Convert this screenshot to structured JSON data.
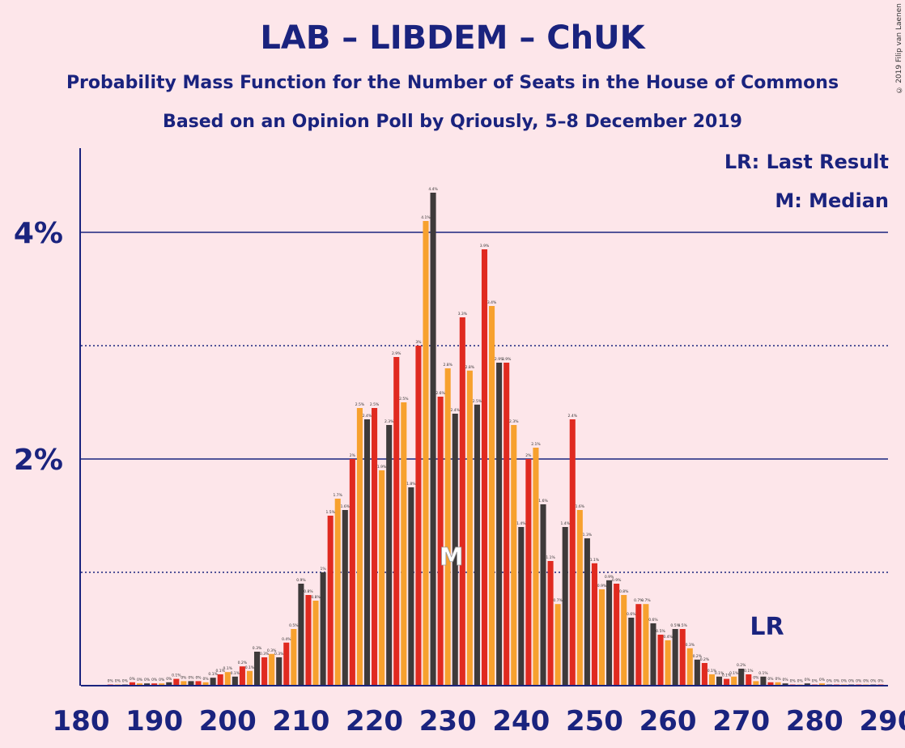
{
  "chart_data": {
    "type": "bar",
    "title": "LAB – LIBDEM – ChUK",
    "subtitle": "Probability Mass Function for the Number of Seats in the House of Commons",
    "subtitle2": "Based on an Opinion Poll by Qriously, 5–8 December 2019",
    "copyright": "© 2019 Filip van Laenen",
    "legend": {
      "lr": "LR: Last Result",
      "m": "M: Median"
    },
    "markers": {
      "last_result_label": "LR",
      "last_result_seat": 273,
      "median_label": "M",
      "median_seat": 230
    },
    "x_ticks": [
      "180",
      "190",
      "200",
      "210",
      "220",
      "230",
      "240",
      "250",
      "260",
      "270",
      "280",
      "290"
    ],
    "y_ticks": [
      {
        "value": 2,
        "label": "2%"
      },
      {
        "value": 4,
        "label": "4%"
      }
    ],
    "ylim": [
      0,
      4.7
    ],
    "xlim": [
      180,
      290
    ],
    "colors": {
      "dark": "#3e3a3a",
      "red": "#e02a20",
      "orange": "#f7a12e",
      "axis": "#1a237e",
      "median": "#ffffff"
    },
    "x": [
      180,
      181,
      182,
      183,
      184,
      185,
      186,
      187,
      188,
      189,
      190,
      191,
      192,
      193,
      194,
      195,
      196,
      197,
      198,
      199,
      200,
      201,
      202,
      203,
      204,
      205,
      206,
      207,
      208,
      209,
      210,
      211,
      212,
      213,
      214,
      215,
      216,
      217,
      218,
      219,
      220,
      221,
      222,
      223,
      224,
      225,
      226,
      227,
      228,
      229,
      230,
      231,
      232,
      233,
      234,
      235,
      236,
      237,
      238,
      239,
      240,
      241,
      242,
      243,
      244,
      245,
      246,
      247,
      248,
      249,
      250,
      251,
      252,
      253,
      254,
      255,
      256,
      257,
      258,
      259,
      260,
      261,
      262,
      263,
      264,
      265,
      266,
      267,
      268,
      269,
      270,
      271,
      272,
      273,
      274,
      275,
      276,
      277,
      278,
      279,
      280,
      281,
      282,
      283,
      284,
      285,
      286,
      287,
      288,
      289,
      290
    ],
    "values": [
      0,
      0,
      0,
      0,
      0.01,
      0.01,
      0.01,
      0.03,
      0.02,
      0.02,
      0.02,
      0.02,
      0.03,
      0.06,
      0.04,
      0.04,
      0.04,
      0.03,
      0.07,
      0.1,
      0.12,
      0.08,
      0.17,
      0.13,
      0.3,
      0.25,
      0.28,
      0.25,
      0.38,
      0.5,
      0.9,
      0.8,
      0.75,
      1.0,
      1.5,
      1.65,
      1.55,
      2.0,
      2.45,
      2.35,
      2.45,
      1.9,
      2.3,
      2.9,
      2.5,
      1.75,
      3.0,
      4.1,
      4.35,
      2.55,
      2.8,
      2.4,
      3.25,
      2.78,
      2.48,
      3.85,
      3.35,
      2.85,
      2.85,
      2.3,
      1.4,
      2.0,
      2.1,
      1.6,
      1.1,
      0.72,
      1.4,
      2.35,
      1.55,
      1.3,
      1.08,
      0.85,
      0.93,
      0.9,
      0.8,
      0.6,
      0.72,
      0.72,
      0.55,
      0.45,
      0.4,
      0.5,
      0.5,
      0.33,
      0.23,
      0.2,
      0.1,
      0.08,
      0.06,
      0.08,
      0.15,
      0.1,
      0.04,
      0.08,
      0.03,
      0.03,
      0.02,
      0.01,
      0.01,
      0.02,
      0.01,
      0.02,
      0.01,
      0.01,
      0.01,
      0.01,
      0.01,
      0.01,
      0.01,
      0.01,
      0
    ]
  }
}
